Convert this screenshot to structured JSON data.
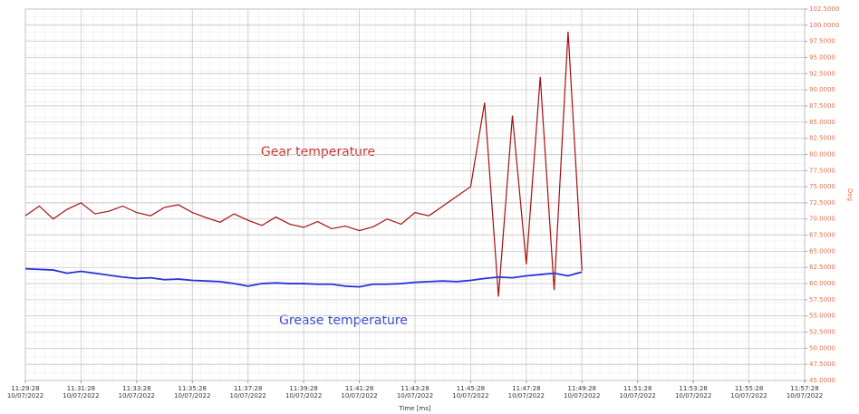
{
  "chart_data": {
    "type": "line",
    "x_label": "Time [ms]",
    "y2_label": "Deg",
    "annotations": [
      "Gear temperature",
      "Grease temperature"
    ],
    "grid": true,
    "xlim": [
      0,
      28
    ],
    "xticks": [
      {
        "value": 0,
        "label": "11:29:28 10/07/2022"
      },
      {
        "value": 2,
        "label": "11:31:28 10/07/2022"
      },
      {
        "value": 4,
        "label": "11:33:28 10/07/2022"
      },
      {
        "value": 6,
        "label": "11:35:28 10/07/2022"
      },
      {
        "value": 8,
        "label": "11:37:28 10/07/2022"
      },
      {
        "value": 10,
        "label": "11:39:28 10/07/2022"
      },
      {
        "value": 12,
        "label": "11:41:28 10/07/2022"
      },
      {
        "value": 14,
        "label": "11:43:28 10/07/2022"
      },
      {
        "value": 16,
        "label": "11:45:28 10/07/2022"
      },
      {
        "value": 18,
        "label": "11:47:28 10/07/2022"
      },
      {
        "value": 20,
        "label": "11:49:28 10/07/2022"
      },
      {
        "value": 22,
        "label": "11:51:28 10/07/2022"
      },
      {
        "value": 24,
        "label": "11:53:28 10/07/2022"
      },
      {
        "value": 26,
        "label": "11:55:28 10/07/2022"
      },
      {
        "value": 28,
        "label": "11:57:28 10/07/2022"
      }
    ],
    "y2lim": [
      45,
      102.5
    ],
    "y2ticks": [
      {
        "value": 45,
        "label": "45.0000"
      },
      {
        "value": 47.5,
        "label": "47.5000"
      },
      {
        "value": 50,
        "label": "50.0000"
      },
      {
        "value": 52.5,
        "label": "52.5000"
      },
      {
        "value": 55,
        "label": "55.0000"
      },
      {
        "value": 57.5,
        "label": "57.5000"
      },
      {
        "value": 60,
        "label": "60.0000"
      },
      {
        "value": 62.5,
        "label": "62.5000"
      },
      {
        "value": 65,
        "label": "65.0000"
      },
      {
        "value": 67.5,
        "label": "67.5000"
      },
      {
        "value": 70,
        "label": "70.0000"
      },
      {
        "value": 72.5,
        "label": "72.5000"
      },
      {
        "value": 75,
        "label": "75.0000"
      },
      {
        "value": 77.5,
        "label": "77.5000"
      },
      {
        "value": 80,
        "label": "80.0000"
      },
      {
        "value": 82.5,
        "label": "82.5000"
      },
      {
        "value": 85,
        "label": "85.0000"
      },
      {
        "value": 87.5,
        "label": "87.5000"
      },
      {
        "value": 90,
        "label": "90.0000"
      },
      {
        "value": 92.5,
        "label": "92.5000"
      },
      {
        "value": 95,
        "label": "95.0000"
      },
      {
        "value": 97.5,
        "label": "97.5000"
      },
      {
        "value": 100,
        "label": "100.0000"
      },
      {
        "value": 102.5,
        "label": "102.5000"
      }
    ],
    "x": [
      0,
      0.5,
      1,
      1.5,
      2,
      2.5,
      3,
      3.5,
      4,
      4.5,
      5,
      5.5,
      6,
      6.5,
      7,
      7.5,
      8,
      8.5,
      9,
      9.5,
      10,
      10.5,
      11,
      11.5,
      12,
      12.5,
      13,
      13.5,
      14,
      14.5,
      15,
      15.5,
      16,
      16.5,
      17,
      17.5,
      18,
      18.5,
      19,
      19.5,
      20
    ],
    "series": [
      {
        "name": "Gear temperature",
        "color": "#a50f0f",
        "axis": "y2",
        "values": [
          70.5,
          72,
          70,
          71.5,
          72.5,
          70.8,
          71.2,
          72,
          71,
          70.5,
          71.8,
          72.2,
          71,
          70.2,
          69.5,
          70.8,
          69.8,
          69,
          70.3,
          69.2,
          68.7,
          69.6,
          68.5,
          68.9,
          68.2,
          68.8,
          70,
          69.2,
          71,
          70.5,
          72,
          73.5,
          75,
          88,
          58,
          86,
          63,
          92,
          59,
          99,
          62
        ]
      },
      {
        "name": "Grease temperature",
        "color": "#2434d8",
        "axis": "y2",
        "values": [
          62.3,
          62.2,
          62.1,
          61.6,
          61.9,
          61.6,
          61.3,
          61.0,
          60.8,
          60.9,
          60.6,
          60.7,
          60.5,
          60.4,
          60.3,
          60.0,
          59.6,
          60.0,
          60.1,
          60.0,
          60.0,
          59.9,
          59.9,
          59.6,
          59.5,
          59.9,
          59.9,
          60.0,
          60.2,
          60.3,
          60.4,
          60.3,
          60.5,
          60.8,
          61.0,
          60.9,
          61.2,
          61.4,
          61.6,
          61.2,
          61.8
        ]
      }
    ]
  }
}
